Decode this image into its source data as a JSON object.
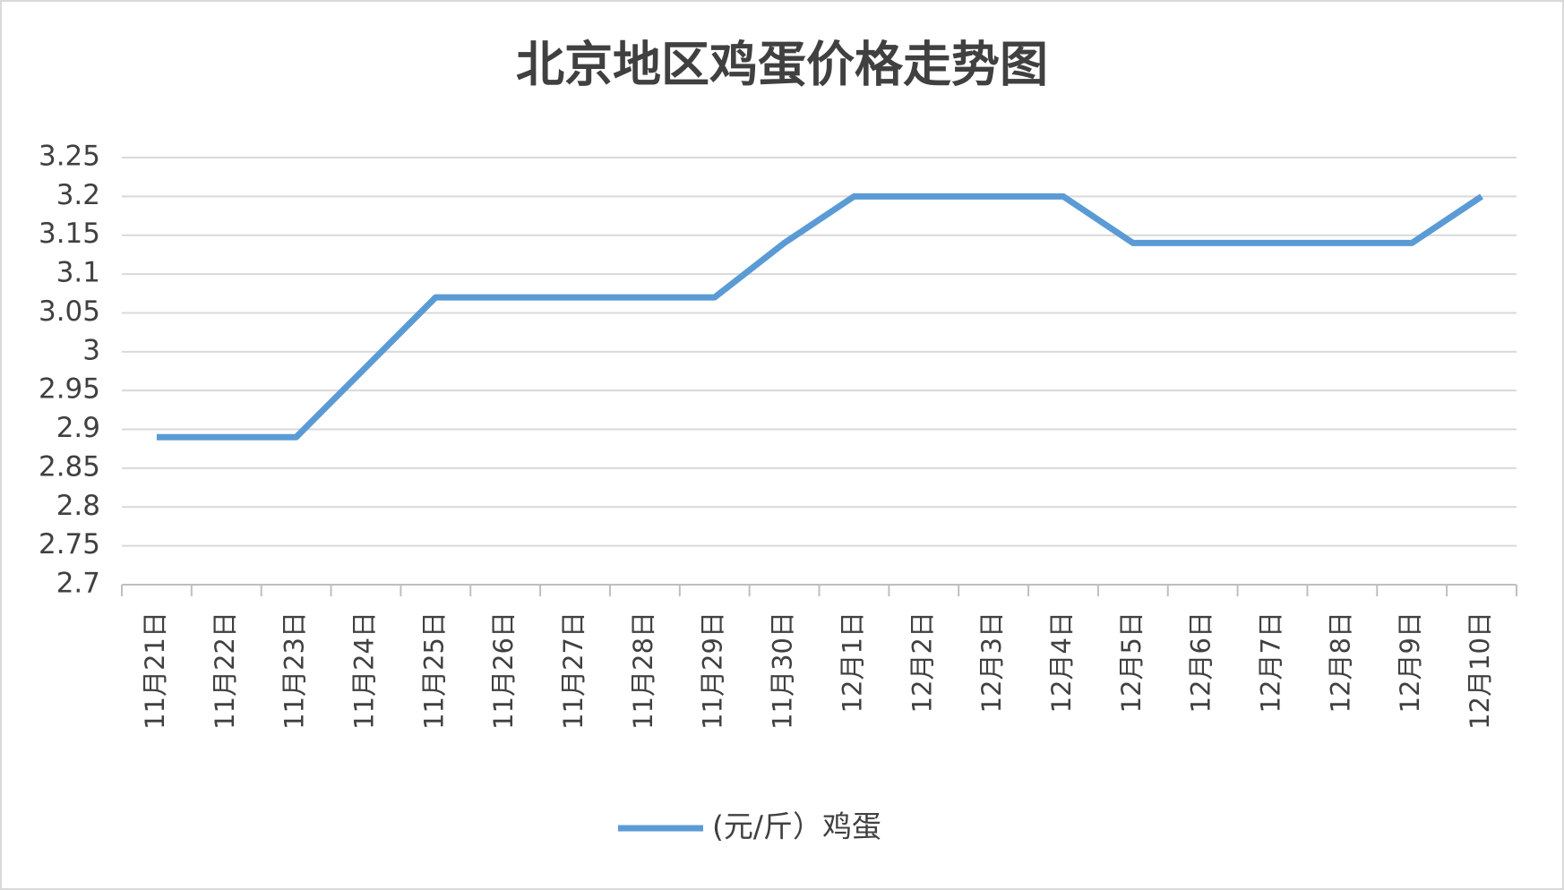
{
  "chart_data": {
    "type": "line",
    "title": "北京地区鸡蛋价格走势图",
    "categories": [
      "11月21日",
      "11月22日",
      "11月23日",
      "11月24日",
      "11月25日",
      "11月26日",
      "11月27日",
      "11月28日",
      "11月29日",
      "11月30日",
      "12月1日",
      "12月2日",
      "12月3日",
      "12月4日",
      "12月5日",
      "12月6日",
      "12月7日",
      "12月8日",
      "12月9日",
      "12月10日"
    ],
    "series": [
      {
        "name": "(元/斤）鸡蛋",
        "color": "#5b9bd5",
        "values": [
          2.89,
          2.89,
          2.89,
          2.98,
          3.07,
          3.07,
          3.07,
          3.07,
          3.07,
          3.14,
          3.2,
          3.2,
          3.2,
          3.2,
          3.14,
          3.14,
          3.14,
          3.14,
          3.14,
          3.2
        ]
      }
    ],
    "ylim": [
      2.7,
      3.25
    ],
    "yticks": [
      2.7,
      2.75,
      2.8,
      2.85,
      2.9,
      2.95,
      3,
      3.05,
      3.1,
      3.15,
      3.2,
      3.25
    ],
    "grid": true,
    "legend": "bottom"
  }
}
